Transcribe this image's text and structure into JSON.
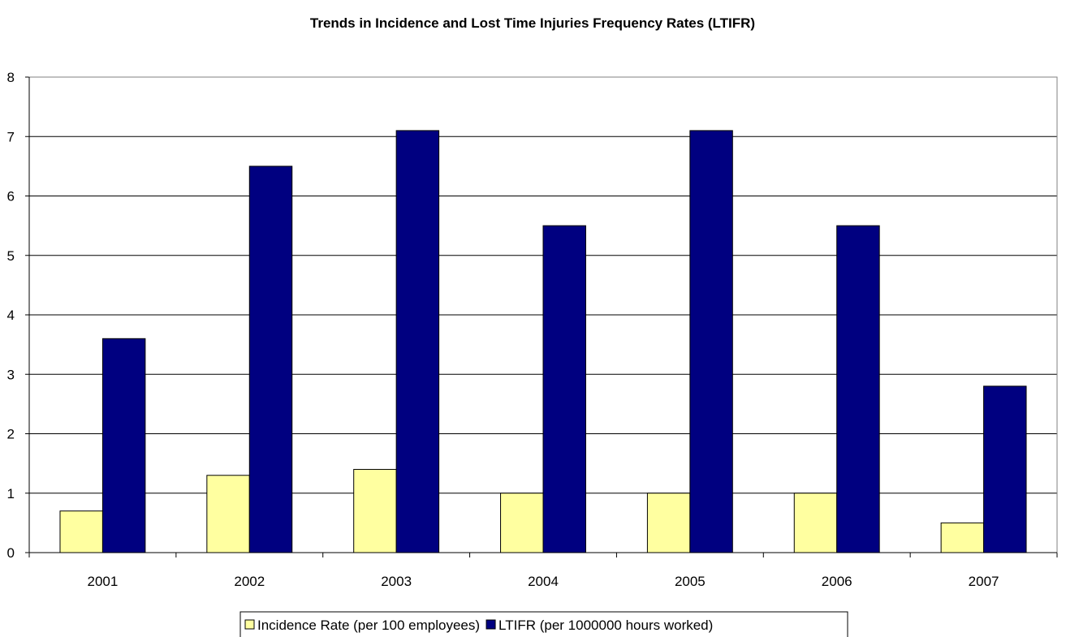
{
  "chart_data": {
    "type": "bar",
    "title": "Trends in Incidence and Lost Time Injuries Frequency Rates (LTIFR)",
    "xlabel": "",
    "ylabel": "",
    "categories": [
      "2001",
      "2002",
      "2003",
      "2004",
      "2005",
      "2006",
      "2007"
    ],
    "series": [
      {
        "name": "Incidence Rate (per 100 employees)",
        "color": "#ffffa0",
        "values": [
          0.7,
          1.3,
          1.4,
          1.0,
          1.0,
          1.0,
          0.5
        ]
      },
      {
        "name": "LTIFR (per 1000000 hours worked)",
        "color": "#000080",
        "values": [
          3.6,
          6.5,
          7.1,
          5.5,
          7.1,
          5.5,
          2.8
        ]
      }
    ],
    "ylim": [
      0,
      8
    ],
    "yticks": [
      "0",
      "1",
      "2",
      "3",
      "4",
      "5",
      "6",
      "7",
      "8"
    ],
    "grid": true,
    "legend_position": "bottom"
  }
}
